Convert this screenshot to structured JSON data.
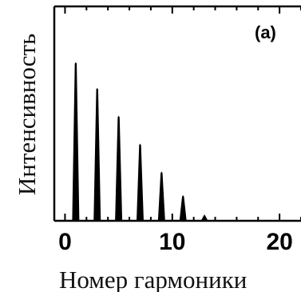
{
  "chart_data": {
    "type": "bar",
    "title": "",
    "panel_label": "(a)",
    "xlabel": "Номер гармоники",
    "ylabel": "Интенсивность",
    "xlim": [
      -1,
      22
    ],
    "ylim": [
      0,
      1
    ],
    "x_ticks": [
      0,
      10,
      20
    ],
    "x_tick_labels": [
      "0",
      "10",
      "20"
    ],
    "y_ticks_shown": false,
    "grid": false,
    "legend": "none",
    "series": [
      {
        "x": [
          1,
          3,
          5,
          7,
          9,
          11,
          13
        ],
        "values": [
          0.74,
          0.62,
          0.49,
          0.36,
          0.23,
          0.12,
          0.03
        ]
      }
    ],
    "colors": {
      "bars": "#000000",
      "axes": "#000000",
      "background": "#ffffff"
    }
  }
}
